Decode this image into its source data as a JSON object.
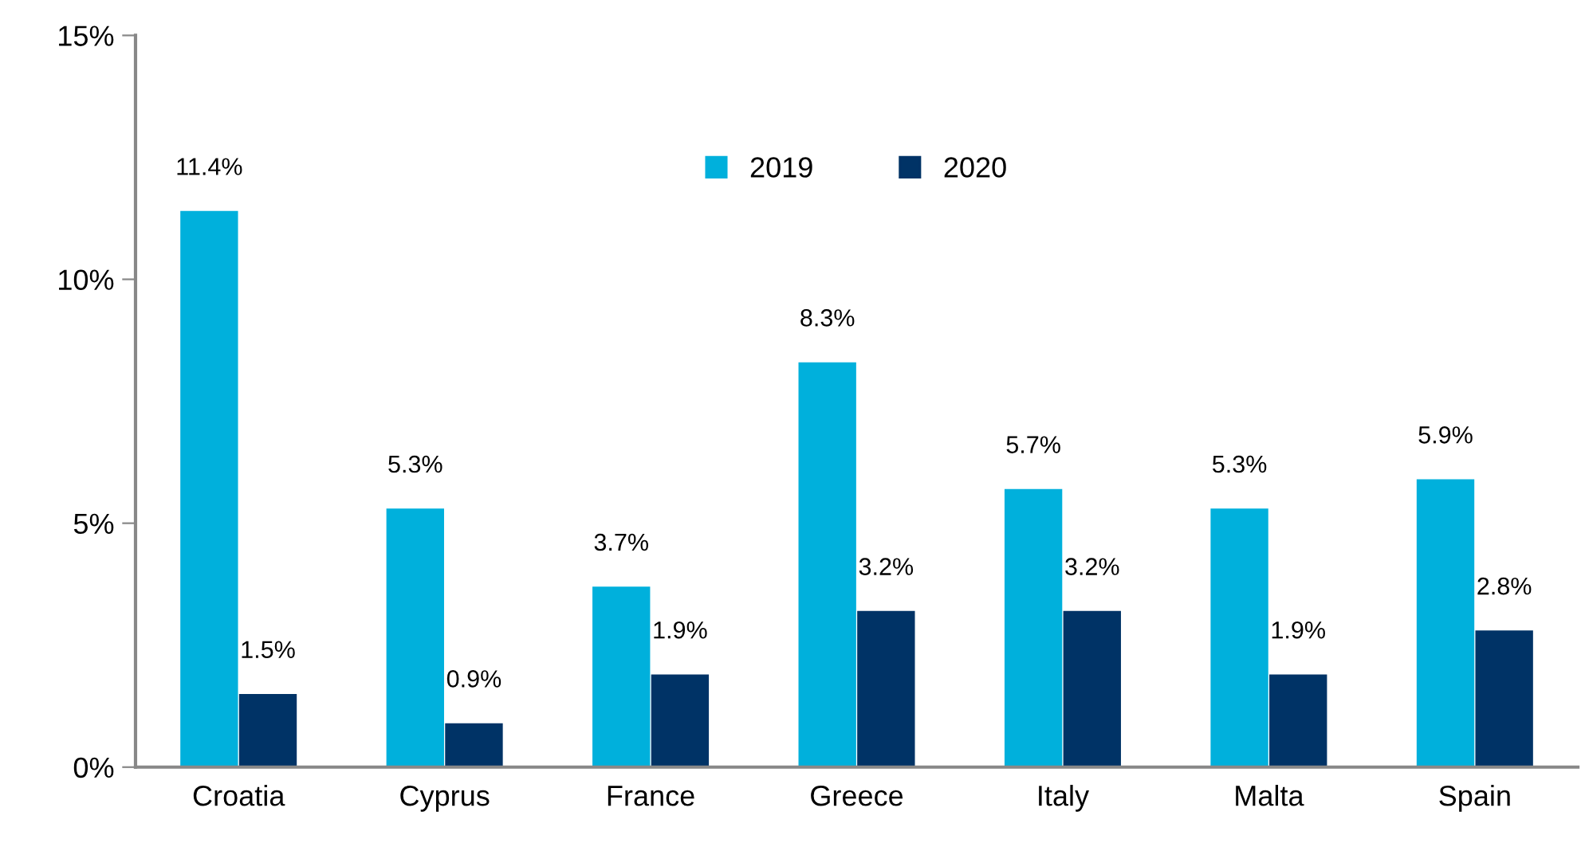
{
  "chart_data": {
    "type": "bar",
    "categories": [
      "Croatia",
      "Cyprus",
      "France",
      "Greece",
      "Italy",
      "Malta",
      "Spain"
    ],
    "series": [
      {
        "name": "2019",
        "color": "#00b0dc",
        "values": [
          11.4,
          5.3,
          3.7,
          8.3,
          5.7,
          5.3,
          5.9
        ],
        "value_labels": [
          "11.4%",
          "5.3%",
          "3.7%",
          "8.3%",
          "5.7%",
          "5.3%",
          "5.9%"
        ]
      },
      {
        "name": "2020",
        "color": "#003366",
        "values": [
          1.5,
          0.9,
          1.9,
          3.2,
          3.2,
          1.9,
          2.8
        ],
        "value_labels": [
          "1.5%",
          "0.9%",
          "1.9%",
          "3.2%",
          "3.2%",
          "1.9%",
          "2.8%"
        ]
      }
    ],
    "ylim": [
      0,
      15
    ],
    "yticks": [
      {
        "value": 0,
        "label": "0%"
      },
      {
        "value": 5,
        "label": "5%"
      },
      {
        "value": 10,
        "label": "10%"
      },
      {
        "value": 15,
        "label": "15%"
      }
    ],
    "grid": false,
    "legend": "top"
  }
}
